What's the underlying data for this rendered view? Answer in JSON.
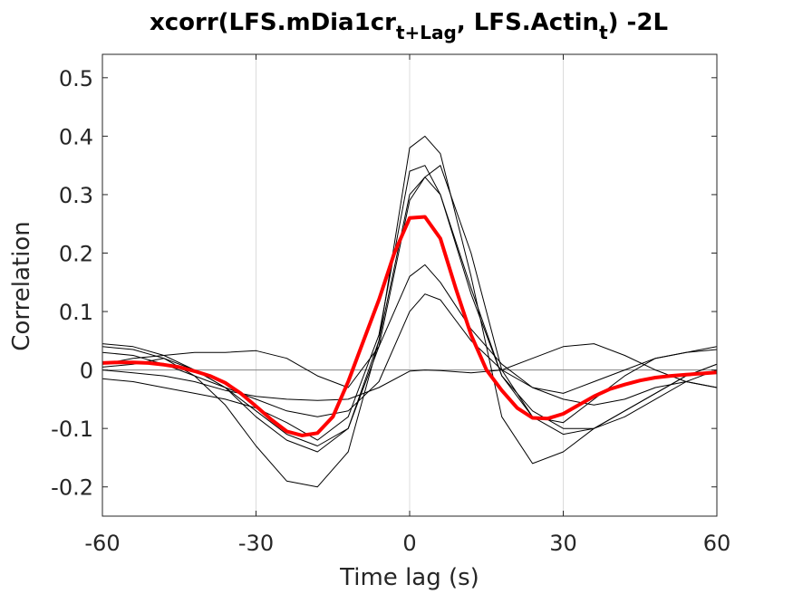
{
  "chart_data": {
    "type": "line",
    "title": {
      "prefix": "xcorr(LFS.mDia1cr",
      "sub1": "t+Lag",
      "middle": ", LFS.Actin",
      "sub2": "t",
      "suffix": ") -2L"
    },
    "xlabel": "Time lag (s)",
    "ylabel": "Correlation",
    "xlim": [
      -60,
      60
    ],
    "ylim": [
      -0.25,
      0.54
    ],
    "xticks": [
      -60,
      -30,
      0,
      30,
      60
    ],
    "xtick_labels": [
      "-60",
      "-30",
      "0",
      "30",
      "60"
    ],
    "yticks": [
      -0.2,
      -0.1,
      0,
      0.1,
      0.2,
      0.3,
      0.4,
      0.5
    ],
    "ytick_labels": [
      "-0.2",
      "-0.1",
      "0",
      "0.1",
      "0.2",
      "0.3",
      "0.4",
      "0.5"
    ],
    "grid": "x",
    "zero_line": true,
    "colors": {
      "individual": "#000000",
      "mean": "#ff0000",
      "grid": "#dcdcdc",
      "zero": "#808080"
    },
    "individual_series": [
      {
        "x": [
          -60,
          -54,
          -48,
          -42,
          -36,
          -30,
          -24,
          -18,
          -12,
          -6,
          0,
          3,
          6,
          12,
          18,
          24,
          30,
          36,
          42,
          48,
          54,
          60
        ],
        "y": [
          0.045,
          0.04,
          0.025,
          0.0,
          -0.03,
          -0.08,
          -0.12,
          -0.14,
          -0.1,
          0.05,
          0.3,
          0.33,
          0.3,
          0.14,
          -0.01,
          -0.07,
          -0.1,
          -0.1,
          -0.08,
          -0.05,
          -0.02,
          0.0
        ]
      },
      {
        "x": [
          -60,
          -54,
          -48,
          -42,
          -36,
          -30,
          -24,
          -18,
          -12,
          -6,
          0,
          3,
          6,
          12,
          18,
          24,
          30,
          36,
          42,
          48,
          54,
          60
        ],
        "y": [
          0.04,
          0.035,
          0.02,
          -0.01,
          -0.06,
          -0.13,
          -0.19,
          -0.2,
          -0.14,
          0.05,
          0.38,
          0.4,
          0.37,
          0.16,
          -0.08,
          -0.16,
          -0.14,
          -0.1,
          -0.07,
          -0.04,
          -0.01,
          0.01
        ]
      },
      {
        "x": [
          -60,
          -54,
          -48,
          -42,
          -36,
          -30,
          -24,
          -18,
          -12,
          -6,
          0,
          3,
          6,
          12,
          18,
          24,
          30,
          36,
          42,
          48,
          54,
          60
        ],
        "y": [
          0.005,
          0.01,
          0.02,
          0.0,
          -0.03,
          -0.07,
          -0.11,
          -0.13,
          -0.1,
          0.04,
          0.29,
          0.33,
          0.35,
          0.2,
          0.0,
          -0.08,
          -0.11,
          -0.1,
          -0.07,
          -0.04,
          -0.01,
          0.01
        ]
      },
      {
        "x": [
          -60,
          -54,
          -48,
          -42,
          -36,
          -30,
          -24,
          -18,
          -12,
          -6,
          0,
          3,
          6,
          12,
          18,
          24,
          30,
          36,
          42,
          48,
          54,
          60
        ],
        "y": [
          -0.015,
          -0.02,
          -0.03,
          -0.04,
          -0.05,
          -0.065,
          -0.09,
          -0.12,
          -0.08,
          0.06,
          0.34,
          0.35,
          0.3,
          0.13,
          -0.01,
          -0.08,
          -0.09,
          -0.05,
          -0.01,
          0.02,
          0.03,
          0.04
        ]
      },
      {
        "x": [
          -60,
          -54,
          -48,
          -42,
          -36,
          -30,
          -24,
          -18,
          -12,
          -6,
          0,
          3,
          6,
          12,
          18,
          24,
          30,
          36,
          42,
          48,
          54,
          60
        ],
        "y": [
          0.01,
          0.02,
          0.025,
          0.03,
          0.03,
          0.033,
          0.02,
          -0.01,
          -0.03,
          0.04,
          0.16,
          0.18,
          0.15,
          0.07,
          0.01,
          -0.03,
          -0.04,
          -0.02,
          0.0,
          0.02,
          0.03,
          0.035
        ]
      },
      {
        "x": [
          -60,
          -54,
          -48,
          -42,
          -36,
          -30,
          -24,
          -18,
          -12,
          -6,
          0,
          3,
          6,
          12,
          18,
          24,
          30,
          36,
          42,
          48,
          54,
          60
        ],
        "y": [
          0.0,
          -0.005,
          -0.01,
          -0.02,
          -0.035,
          -0.045,
          -0.05,
          -0.052,
          -0.05,
          -0.03,
          -0.002,
          0.0,
          -0.001,
          -0.005,
          0.0,
          0.02,
          0.04,
          0.045,
          0.025,
          0.0,
          -0.02,
          -0.03
        ]
      },
      {
        "x": [
          -60,
          -54,
          -48,
          -42,
          -36,
          -30,
          -24,
          -18,
          -12,
          -6,
          0,
          3,
          6,
          12,
          18,
          24,
          30,
          36,
          42,
          48,
          54,
          60
        ],
        "y": [
          0.03,
          0.025,
          0.01,
          -0.01,
          -0.03,
          -0.05,
          -0.07,
          -0.08,
          -0.07,
          -0.02,
          0.1,
          0.13,
          0.12,
          0.05,
          0.0,
          -0.03,
          -0.05,
          -0.06,
          -0.05,
          -0.03,
          -0.02,
          -0.03
        ]
      }
    ],
    "mean_series": {
      "x": [
        -60,
        -57,
        -54,
        -51,
        -48,
        -45,
        -42,
        -39,
        -36,
        -33,
        -30,
        -27,
        -24,
        -21,
        -18,
        -15,
        -12,
        -9,
        -6,
        -3,
        0,
        3,
        6,
        9,
        12,
        15,
        18,
        21,
        24,
        27,
        30,
        33,
        36,
        39,
        42,
        45,
        48,
        51,
        54,
        57,
        60
      ],
      "y": [
        0.012,
        0.013,
        0.013,
        0.012,
        0.009,
        0.005,
        -0.002,
        -0.01,
        -0.022,
        -0.04,
        -0.062,
        -0.085,
        -0.105,
        -0.112,
        -0.108,
        -0.08,
        -0.02,
        0.05,
        0.12,
        0.2,
        0.26,
        0.262,
        0.225,
        0.14,
        0.06,
        0.0,
        -0.035,
        -0.065,
        -0.082,
        -0.083,
        -0.075,
        -0.06,
        -0.045,
        -0.033,
        -0.025,
        -0.018,
        -0.013,
        -0.01,
        -0.008,
        -0.006,
        -0.004
      ]
    }
  }
}
